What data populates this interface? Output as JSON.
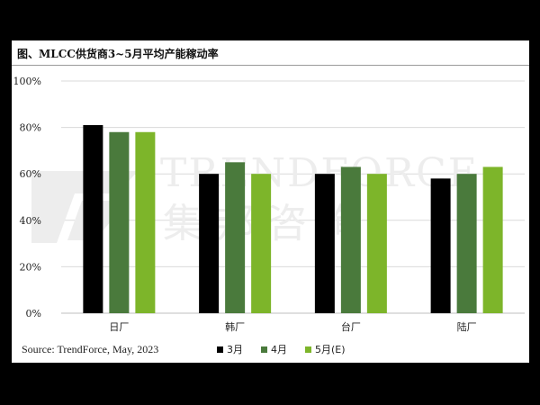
{
  "title": "图、MLCC供货商3~5月平均产能稼动率",
  "source": "Source: TrendForce, May, 2023",
  "watermark": {
    "brand": "TRENDFORCE",
    "chinese": "集邦咨询"
  },
  "colors": {
    "series_0": "#000000",
    "series_1": "#4a7a3c",
    "series_2": "#7db52a",
    "grid": "#d9d9d9",
    "watermark": "#ededed"
  },
  "chart_data": {
    "type": "bar",
    "title": "图、MLCC供货商3~5月平均产能稼动率",
    "xlabel": "",
    "ylabel": "",
    "categories": [
      "日厂",
      "韩厂",
      "台厂",
      "陆厂"
    ],
    "series": [
      {
        "name": "3月",
        "values": [
          81,
          60,
          60,
          58
        ]
      },
      {
        "name": "4月",
        "values": [
          78,
          65,
          63,
          60
        ]
      },
      {
        "name": "5月(E)",
        "values": [
          78,
          60,
          60,
          63
        ]
      }
    ],
    "ylim": [
      0,
      100
    ],
    "yticks": [
      0,
      20,
      40,
      60,
      80,
      100
    ],
    "ytick_labels": [
      "0%",
      "20%",
      "40%",
      "60%",
      "80%",
      "100%"
    ],
    "grid": true,
    "legend": "bottom"
  }
}
